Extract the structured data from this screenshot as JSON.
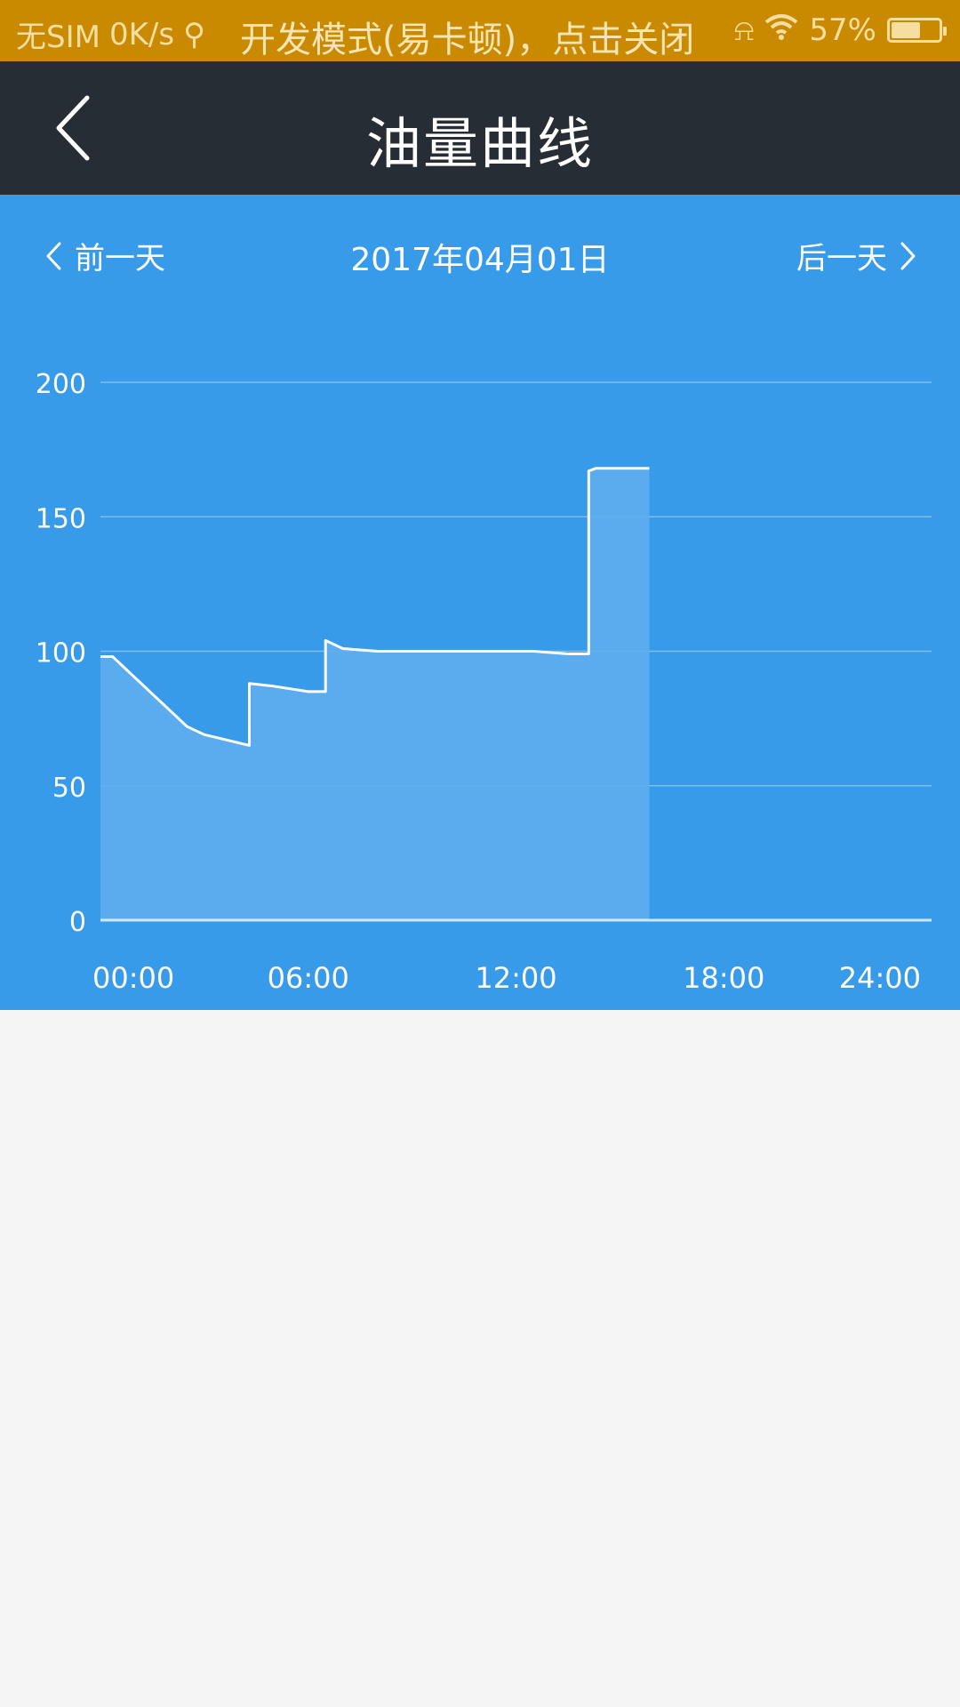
{
  "status_bar": {
    "carrier": "无SIM",
    "speed": "0K/s",
    "dev_mode_text": "开发模式(易卡顿)，点击关闭",
    "battery_text": "57%",
    "battery_level": 0.57
  },
  "nav": {
    "title": "油量曲线",
    "back_icon": "chevron-left-icon"
  },
  "day_nav": {
    "prev_label": "前一天",
    "next_label": "后一天",
    "date": "2017年04月01日"
  },
  "colors": {
    "status_bar": "#c98a00",
    "nav_bar": "#262d35",
    "chart_bg": "#379bea",
    "area_fill": "#5eaeee",
    "line": "#ffffff",
    "page_bg": "#f5f5f6"
  },
  "chart_data": {
    "type": "area",
    "title": "",
    "xlabel": "",
    "ylabel": "",
    "xlim": [
      0,
      24
    ],
    "ylim": [
      0,
      200
    ],
    "y_ticks": [
      0,
      50,
      100,
      150,
      200
    ],
    "x_tick_labels": [
      "00:00",
      "06:00",
      "12:00",
      "18:00",
      "24:00"
    ],
    "x_tick_values": [
      0,
      6,
      12,
      18,
      24
    ],
    "grid": true,
    "legend": "none",
    "series": [
      {
        "x": [
          0.0,
          0.35,
          2.5,
          3.0,
          4.3,
          4.3,
          5.0,
          6.0,
          6.5,
          6.5,
          7.0,
          8.0,
          9.5,
          11.0,
          12.5,
          13.5,
          14.1,
          14.1,
          14.3,
          15.2,
          15.85,
          15.85
        ],
        "y": [
          98,
          98,
          72,
          69,
          65,
          88,
          87,
          85,
          85,
          104,
          101,
          100,
          100,
          100,
          100,
          99,
          99,
          167,
          168,
          168,
          168,
          0
        ]
      }
    ]
  }
}
